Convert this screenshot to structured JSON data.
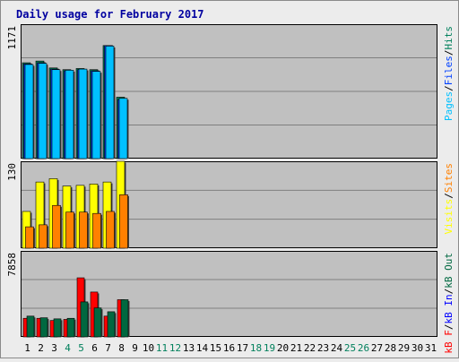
{
  "chart_data": {
    "type": "bar",
    "title": "Daily usage for February 2017",
    "categories": [
      "1",
      "2",
      "3",
      "4",
      "5",
      "6",
      "7",
      "8",
      "9",
      "10",
      "11",
      "12",
      "13",
      "14",
      "15",
      "16",
      "17",
      "18",
      "19",
      "20",
      "21",
      "22",
      "23",
      "24",
      "25",
      "26",
      "27",
      "28",
      "29",
      "30",
      "31"
    ],
    "weekend_days": [
      "4",
      "5",
      "11",
      "12",
      "18",
      "19",
      "25",
      "26"
    ],
    "panels": [
      {
        "id": "hits-files-pages",
        "ymax": 1171,
        "ymax_label": "1171",
        "legend": [
          "Pages",
          "/",
          "Files",
          "/",
          "Hits"
        ],
        "series": [
          {
            "name": "Hits",
            "values": [
              835,
              850,
              790,
              775,
              785,
              775,
              985,
              535,
              0,
              0,
              0,
              0,
              0,
              0,
              0,
              0,
              0,
              0,
              0,
              0,
              0,
              0,
              0,
              0,
              0,
              0,
              0,
              0,
              0,
              0,
              0
            ]
          },
          {
            "name": "Files",
            "values": [
              825,
              835,
              780,
              765,
              775,
              765,
              985,
              515,
              0,
              0,
              0,
              0,
              0,
              0,
              0,
              0,
              0,
              0,
              0,
              0,
              0,
              0,
              0,
              0,
              0,
              0,
              0,
              0,
              0,
              0,
              0
            ]
          },
          {
            "name": "Pages",
            "values": [
              820,
              830,
              775,
              770,
              780,
              760,
              980,
              525,
              0,
              0,
              0,
              0,
              0,
              0,
              0,
              0,
              0,
              0,
              0,
              0,
              0,
              0,
              0,
              0,
              0,
              0,
              0,
              0,
              0,
              0,
              0
            ]
          }
        ]
      },
      {
        "id": "visits-sites",
        "ymax": 130,
        "ymax_label": "130",
        "legend": [
          "Visits",
          "/",
          "Sites"
        ],
        "series": [
          {
            "name": "Visits",
            "values": [
              55,
              99,
              104,
              93,
              94,
              96,
              99,
              130,
              0,
              0,
              0,
              0,
              0,
              0,
              0,
              0,
              0,
              0,
              0,
              0,
              0,
              0,
              0,
              0,
              0,
              0,
              0,
              0,
              0,
              0,
              0
            ]
          },
          {
            "name": "Sites",
            "values": [
              32,
              35,
              64,
              54,
              54,
              52,
              55,
              80,
              0,
              0,
              0,
              0,
              0,
              0,
              0,
              0,
              0,
              0,
              0,
              0,
              0,
              0,
              0,
              0,
              0,
              0,
              0,
              0,
              0,
              0,
              0
            ]
          }
        ]
      },
      {
        "id": "kbytes",
        "ymax": 7858,
        "ymax_label": "7858",
        "legend": [
          "kB F",
          "/",
          "kB In",
          "/",
          "kB Out"
        ],
        "series": [
          {
            "name": "kB F",
            "values": [
              1700,
              1700,
              1500,
              1600,
              5400,
              4100,
              1900,
              3400,
              0,
              0,
              0,
              0,
              0,
              0,
              0,
              0,
              0,
              0,
              0,
              0,
              0,
              0,
              0,
              0,
              0,
              0,
              0,
              0,
              0,
              0,
              0
            ]
          },
          {
            "name": "kB Out",
            "values": [
              1900,
              1750,
              1650,
              1700,
              3200,
              2650,
              2300,
              3400,
              0,
              0,
              0,
              0,
              0,
              0,
              0,
              0,
              0,
              0,
              0,
              0,
              0,
              0,
              0,
              0,
              0,
              0,
              0,
              0,
              0,
              0,
              0
            ]
          }
        ]
      }
    ]
  },
  "colors": {
    "frame_bg": "#ececec",
    "plot_bg": "#c0c0c0",
    "title": "#0000a0",
    "hits": "#00805c",
    "files": "#0040ff",
    "pages": "#00c0ff",
    "visits": "#ffff00",
    "sites": "#ff8000",
    "kbf": "#ff0000",
    "kbin": "#0000ff",
    "kbout": "#006840",
    "weekend_label": "#00805c"
  }
}
